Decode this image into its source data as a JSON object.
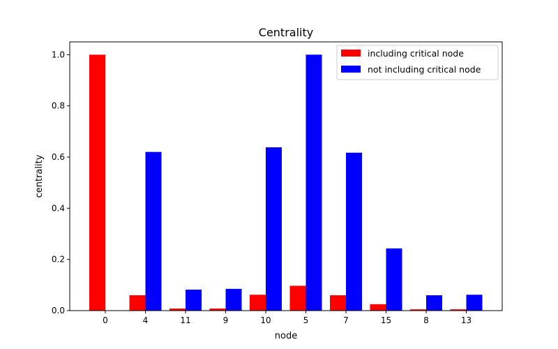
{
  "chart_data": {
    "type": "bar",
    "title": "Centrality",
    "xlabel": "node",
    "ylabel": "centrality",
    "categories": [
      "0",
      "4",
      "11",
      "9",
      "10",
      "5",
      "7",
      "15",
      "8",
      "13"
    ],
    "series": [
      {
        "name": "including critical node",
        "color": "#ff0000",
        "values": [
          1.0,
          0.06,
          0.008,
          0.008,
          0.062,
          0.097,
          0.06,
          0.025,
          0.005,
          0.005
        ]
      },
      {
        "name": "not including critical node",
        "color": "#0000ff",
        "values": [
          0.0,
          0.62,
          0.082,
          0.085,
          0.638,
          1.0,
          0.617,
          0.243,
          0.06,
          0.062
        ]
      }
    ],
    "ylim": [
      0,
      1.05
    ],
    "yticks": [
      "0.0",
      "0.2",
      "0.4",
      "0.6",
      "0.8",
      "1.0"
    ],
    "grid": false,
    "legend_position": "top-right"
  }
}
